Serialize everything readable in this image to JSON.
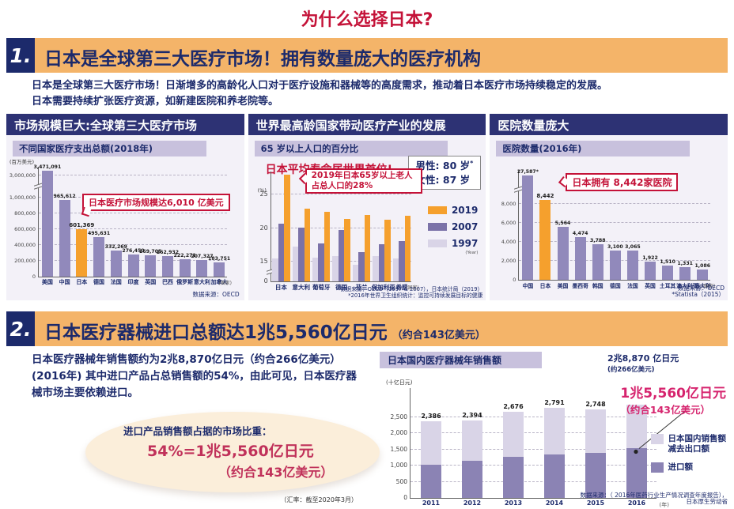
{
  "page": {
    "title": "为什么选择日本?"
  },
  "colors": {
    "accent_red": "#c41238",
    "banner_orange": "#f4b469",
    "navy": "#1c2a6b",
    "header_navy": "#2d3274",
    "lavender_label": "#c8c1dd",
    "panel_bg": "#f3f1f8",
    "bar_purple": "#9189bb",
    "bar_orange": "#f5a02d",
    "bar_light": "#d9d4e7",
    "magenta": "#d6246e",
    "cream": "#fbeeda"
  },
  "section1": {
    "number": "1.",
    "title": "日本是全球第三大医疗市场！拥有数量庞大的医疗机构",
    "intro_line1": "日本是全球第三大医疗市场！日渐增多的高龄化人口对于医疗设施和器械等的高度需求，推动着日本医疗市场持续稳定的发展。",
    "intro_line2": "日本需要持续扩张医疗资源，如新建医院和养老院等。",
    "panels": {
      "market": {
        "header": "市场规模巨大:全球第三大医疗市场"
      },
      "aging": {
        "header": "世界最高龄国家带动医疗产业的发展"
      },
      "hospitals": {
        "header": "医院数量庞大"
      }
    }
  },
  "section2": {
    "number": "2.",
    "title": "日本医疗器械进口总额达1兆5,560亿日元",
    "title_suffix": "（约合143亿美元）",
    "body_line1": "日本医疗器械年销售额约为2兆8,870亿日元（约合266亿美元）",
    "body_line2": "(2016年) 其中进口产品占总销售额的54%，由此可见，日本医疗器",
    "body_line3": "械市场主要依赖进口。",
    "ellipse": {
      "label": "进口产品销售额占据的市场比重：",
      "value": "54%=1兆5,560亿日元",
      "value2": "（约合143亿美元）"
    },
    "exchange_note": "（汇率：截至2020年3月）"
  },
  "chart_data": [
    {
      "id": "spending",
      "type": "bar",
      "title": "不同国家医疗支出总额(2018年)",
      "ylabel": "(百万美元)",
      "categories": [
        "美国",
        "中国",
        "日本",
        "德国",
        "法国",
        "印度",
        "英国",
        "巴西",
        "俄罗斯",
        "意大利",
        "加拿大"
      ],
      "values": [
        3471091,
        965612,
        601369,
        495631,
        332269,
        276450,
        269705,
        262932,
        222271,
        207327,
        183751
      ],
      "value_labels": [
        "3,471,091",
        "965,612",
        "601,369",
        "495,631",
        "332,269",
        "276,450",
        "269,705",
        "262,932",
        "222,271",
        "207,327",
        "183,751"
      ],
      "highlight_index": 2,
      "yticks": [
        200000,
        400000,
        600000,
        800000,
        1000000
      ],
      "ytick_top_label": "3,000,000",
      "axis_break": true,
      "axis_suffix": "(国家)",
      "ylim": [
        0,
        3500000
      ],
      "annotation": "日本医疗市场规模达6,010 亿美元",
      "source": "数据来源：OECD"
    },
    {
      "id": "aging",
      "type": "grouped-bar",
      "title": "65 岁以上人口的百分比",
      "ylabel": "(%)",
      "headline": "日本平均寿命居世界首位!",
      "lifespan_male": "男性: 80 岁",
      "lifespan_star": "*",
      "lifespan_female": "女性: 87 岁",
      "categories": [
        "日本",
        "意大利",
        "葡萄牙",
        "德国",
        "芬兰",
        "保加利亚",
        "希腊"
      ],
      "series": [
        {
          "name": "2019",
          "color": "#f5a02d",
          "values": [
            28,
            22.9,
            22.4,
            21.4,
            22.0,
            21.2,
            21.8
          ]
        },
        {
          "name": "2007",
          "color": "#7b72a8",
          "values": [
            20.6,
            20.1,
            17.7,
            19.7,
            16.4,
            17.6,
            18.1
          ]
        },
        {
          "name": "1997",
          "color": "#d9d4e7",
          "values": [
            15.4,
            17.2,
            15.5,
            15.8,
            14.5,
            15.8,
            15.4
          ]
        }
      ],
      "year_note": "(Year)",
      "yticks": [
        15,
        20,
        25
      ],
      "ylim": [
        0,
        28
      ],
      "axis_break": true,
      "axis_suffix": "(国家)",
      "annotation": "2019年日本65岁以上老人占总人口的28%",
      "source": "数据来源：OECD（1997 & 2007），日本统计局（2019）",
      "footnote": "*2016年世界卫生组织统计：监控可持续发展目标的健康"
    },
    {
      "id": "hospitals",
      "type": "bar",
      "title": "医院数量(2016年)",
      "categories": [
        "中国",
        "日本",
        "美国",
        "墨西哥",
        "韩国",
        "德国",
        "法国",
        "英国",
        "土耳其",
        "澳大利亚",
        "意大利"
      ],
      "values": [
        27587,
        8442,
        5564,
        4474,
        3788,
        3100,
        3065,
        1922,
        1510,
        1331,
        1086
      ],
      "value_labels": [
        "27,587*",
        "8,442",
        "5,564",
        "4,474",
        "3,788",
        "3,100",
        "3,065",
        "1,922",
        "1,510",
        "1,331",
        "1,086"
      ],
      "highlight_index": 1,
      "yticks": [
        2000,
        4000,
        6000,
        8000
      ],
      "axis_break": true,
      "axis_suffix": "(国家)",
      "ylim": [
        0,
        28000
      ],
      "annotation": "日本拥有 8,442家医院",
      "source_line1": "数据来源：OECD",
      "source_line2": "*Statista（2015）"
    },
    {
      "id": "sales",
      "type": "stacked-bar",
      "title": "日本国内医疗器械年销售额",
      "ylabel": "(十亿日元)",
      "categories": [
        "2011",
        "2012",
        "2013",
        "2014",
        "2015",
        "2016"
      ],
      "series": [
        {
          "name": "进口额",
          "color": "#8b83b4",
          "values": [
            1030,
            1160,
            1280,
            1350,
            1400,
            1556
          ]
        },
        {
          "name": "日本国内销售额减去出口额",
          "color": "#d9d4e7",
          "values": [
            1356,
            1234,
            1396,
            1441,
            1348,
            1331
          ]
        }
      ],
      "total_labels": [
        "2,386",
        "2,394",
        "2,676",
        "2,791",
        "2,748",
        ""
      ],
      "top_label_line1": "2兆8,870 亿日元",
      "top_label_line2": "(约266亿美元)",
      "yticks": [
        500,
        1000,
        1500,
        2000,
        2500
      ],
      "ylim": [
        0,
        2900
      ],
      "x_suffix": "(年)",
      "annotation_line1": "1兆5,560亿日元",
      "annotation_line2": "（约合143亿美元）",
      "legend": [
        {
          "color": "#d9d4e7",
          "label_line1": "日本国内销售额",
          "label_line2": "减去出口额"
        },
        {
          "color": "#8b83b4",
          "label_line1": "进口额",
          "label_line2": ""
        }
      ],
      "source_line1": "数据来源：（ 2016年医药行业生产情况调查年度报告），",
      "source_line2": "日本厚生劳动省"
    }
  ]
}
